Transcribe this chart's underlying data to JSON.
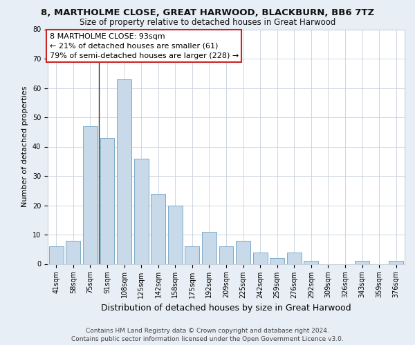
{
  "title": "8, MARTHOLME CLOSE, GREAT HARWOOD, BLACKBURN, BB6 7TZ",
  "subtitle": "Size of property relative to detached houses in Great Harwood",
  "xlabel": "Distribution of detached houses by size in Great Harwood",
  "ylabel": "Number of detached properties",
  "categories": [
    "41sqm",
    "58sqm",
    "75sqm",
    "91sqm",
    "108sqm",
    "125sqm",
    "142sqm",
    "158sqm",
    "175sqm",
    "192sqm",
    "209sqm",
    "225sqm",
    "242sqm",
    "259sqm",
    "276sqm",
    "292sqm",
    "309sqm",
    "326sqm",
    "343sqm",
    "359sqm",
    "376sqm"
  ],
  "values": [
    6,
    8,
    47,
    43,
    63,
    36,
    24,
    20,
    6,
    11,
    6,
    8,
    4,
    2,
    4,
    1,
    0,
    0,
    1,
    0,
    1
  ],
  "bar_color": "#c8d9ea",
  "bar_edge_color": "#7aaac8",
  "annotation_line1": "8 MARTHOLME CLOSE: 93sqm",
  "annotation_line2": "← 21% of detached houses are smaller (61)",
  "annotation_line3": "79% of semi-detached houses are larger (228) →",
  "annotation_box_facecolor": "#ffffff",
  "annotation_box_edgecolor": "#cc2222",
  "ylim": [
    0,
    80
  ],
  "yticks": [
    0,
    10,
    20,
    30,
    40,
    50,
    60,
    70,
    80
  ],
  "footer_line1": "Contains HM Land Registry data © Crown copyright and database right 2024.",
  "footer_line2": "Contains public sector information licensed under the Open Government Licence v3.0.",
  "background_color": "#e8eef5",
  "plot_bg_color": "#ffffff",
  "grid_color": "#c8d0dc",
  "title_fontsize": 9.5,
  "subtitle_fontsize": 8.5,
  "xlabel_fontsize": 9,
  "ylabel_fontsize": 8,
  "tick_fontsize": 7,
  "annotation_fontsize": 8,
  "footer_fontsize": 6.5,
  "highlight_vline_x": 2.5,
  "highlight_vline_color": "#333333"
}
